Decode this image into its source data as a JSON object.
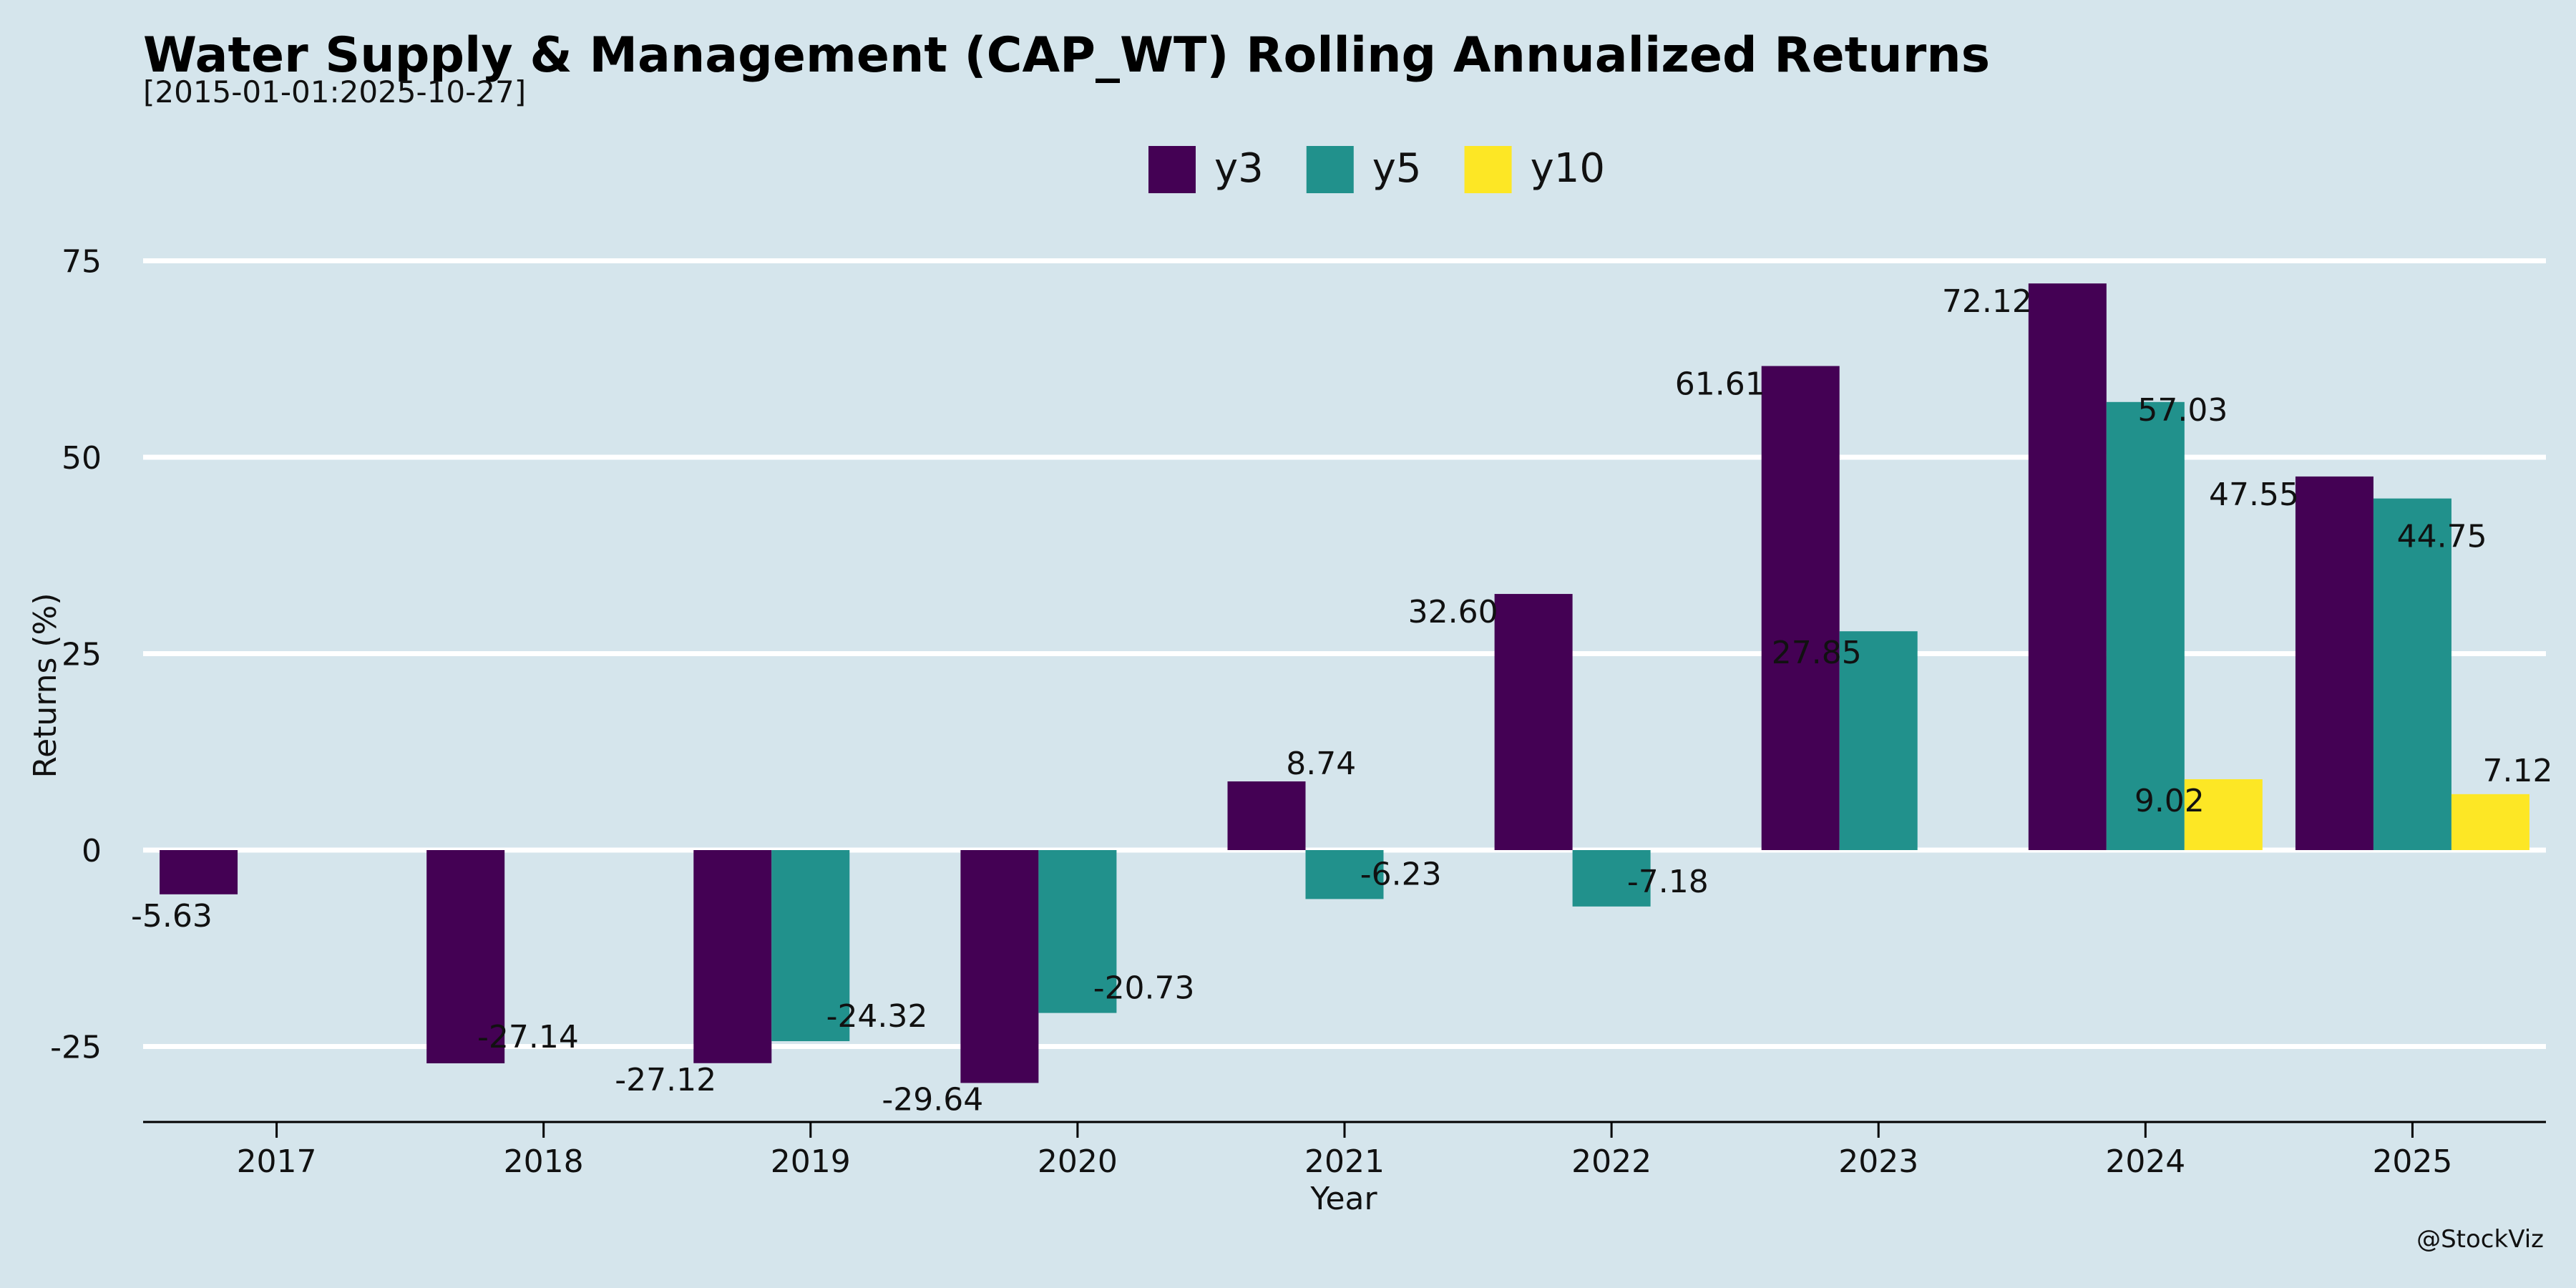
{
  "chart_data": {
    "type": "bar",
    "title": "Water Supply & Management (CAP_WT) Rolling Annualized Returns",
    "subtitle": "[2015-01-01:2025-10-27]",
    "xlabel": "Year",
    "ylabel": "Returns (%)",
    "credit": "@StockViz",
    "categories": [
      "2017",
      "2018",
      "2019",
      "2020",
      "2021",
      "2022",
      "2023",
      "2024",
      "2025"
    ],
    "series": [
      {
        "name": "y3",
        "color": "#440154",
        "values": [
          -5.63,
          -27.14,
          -27.12,
          -29.64,
          8.74,
          32.6,
          61.61,
          72.12,
          47.55
        ],
        "labels": [
          "-5.63",
          "-27.14",
          "-27.12",
          "-29.64",
          "8.74",
          "32.60",
          "61.61",
          "72.12",
          "47.55"
        ]
      },
      {
        "name": "y5",
        "color": "#21918c",
        "values": [
          null,
          null,
          -24.32,
          -20.73,
          -6.23,
          -7.18,
          27.85,
          57.03,
          44.75
        ],
        "labels": [
          null,
          null,
          "-24.32",
          "-20.73",
          "-6.23",
          "-7.18",
          "27.85",
          "57.03",
          "44.75"
        ]
      },
      {
        "name": "y10",
        "color": "#fde725",
        "values": [
          null,
          null,
          null,
          null,
          null,
          null,
          null,
          9.02,
          7.12
        ],
        "labels": [
          null,
          null,
          null,
          null,
          null,
          null,
          null,
          "9.02",
          "7.12"
        ]
      }
    ],
    "yticks": [
      -25,
      0,
      25,
      50,
      75
    ],
    "ytick_labels": [
      "-25",
      "0",
      "25",
      "50",
      "75"
    ],
    "ylim": [
      -35,
      81
    ],
    "grid": true,
    "legend_position": "top-center"
  }
}
